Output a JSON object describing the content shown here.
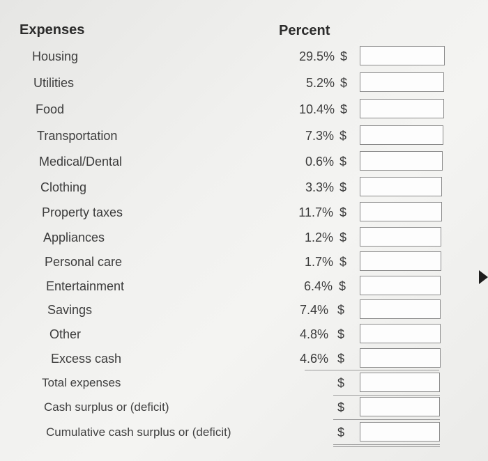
{
  "headers": {
    "expenses": "Expenses",
    "percent": "Percent"
  },
  "currency_symbol": "$",
  "rows": [
    {
      "label": "Housing",
      "percent": "29.5%",
      "amount": ""
    },
    {
      "label": "Utilities",
      "percent": "5.2%",
      "amount": ""
    },
    {
      "label": "Food",
      "percent": "10.4%",
      "amount": ""
    },
    {
      "label": "Transportation",
      "percent": "7.3%",
      "amount": ""
    },
    {
      "label": "Medical/Dental",
      "percent": "0.6%",
      "amount": ""
    },
    {
      "label": "Clothing",
      "percent": "3.3%",
      "amount": ""
    },
    {
      "label": "Property taxes",
      "percent": "11.7%",
      "amount": ""
    },
    {
      "label": "Appliances",
      "percent": "1.2%",
      "amount": ""
    },
    {
      "label": "Personal care",
      "percent": "1.7%",
      "amount": ""
    },
    {
      "label": "Entertainment",
      "percent": "6.4%",
      "amount": ""
    },
    {
      "label": "Savings",
      "percent": "7.4%",
      "amount": ""
    },
    {
      "label": "Other",
      "percent": "4.8%",
      "amount": ""
    },
    {
      "label": "Excess cash",
      "percent": "4.6%",
      "amount": ""
    }
  ],
  "totals": [
    {
      "label": "Total expenses",
      "amount": ""
    },
    {
      "label": "Cash surplus or (deficit)",
      "amount": ""
    },
    {
      "label": "Cumulative cash surplus or (deficit)",
      "amount": ""
    }
  ]
}
